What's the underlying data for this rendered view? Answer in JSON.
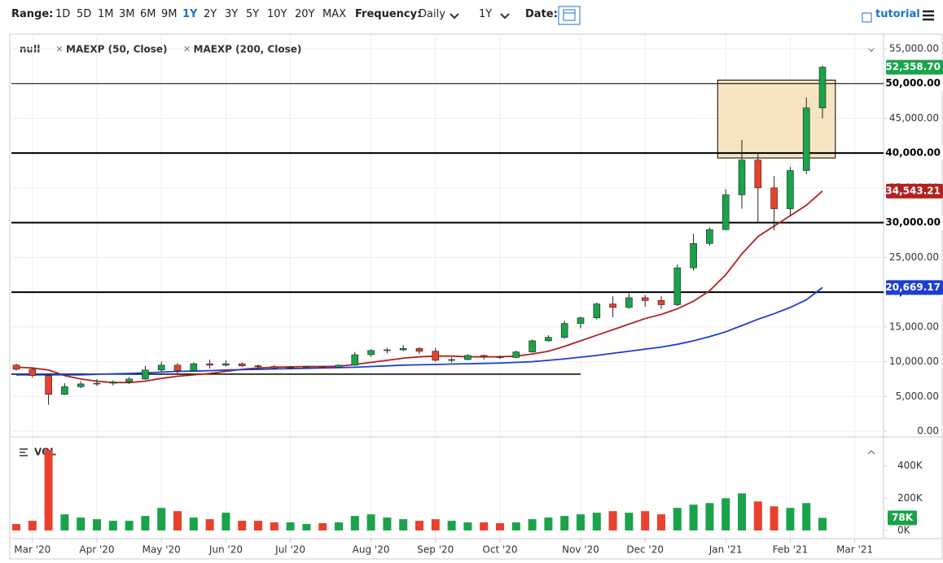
{
  "toolbar": {
    "range_label": "Range:",
    "ranges": [
      "1D",
      "5D",
      "1M",
      "3M",
      "6M",
      "9M",
      "1Y",
      "2Y",
      "3Y",
      "5Y",
      "10Y",
      "20Y",
      "MAX"
    ],
    "selected_range": 6,
    "frequency_label": "Frequency:",
    "frequency": "Daily",
    "interval": "1Y",
    "date_label": "Date:",
    "tutorial": "tutorial"
  },
  "chart_data": {
    "type": "candlestick",
    "legend_title": "null",
    "categories": [
      null,
      "Mar '20",
      null,
      null,
      null,
      "Apr '20",
      null,
      null,
      null,
      "May '20",
      null,
      null,
      null,
      "Jun '20",
      null,
      null,
      null,
      "Jul '20",
      null,
      null,
      null,
      null,
      "Aug '20",
      null,
      null,
      null,
      "Sep '20",
      null,
      null,
      null,
      "Oct '20",
      null,
      null,
      null,
      null,
      "Nov '20",
      null,
      null,
      null,
      "Dec '20",
      null,
      null,
      null,
      null,
      "Jan '21",
      null,
      null,
      null,
      "Feb '21",
      null,
      null,
      null,
      "Mar '21",
      null,
      null,
      null
    ],
    "open": [
      9500,
      8900,
      8000,
      5300,
      6400,
      6800,
      6900,
      7100,
      7500,
      8800,
      9500,
      8700,
      9700,
      9500,
      9700,
      9400,
      9300,
      9100,
      9200,
      9250,
      9200,
      9500,
      11000,
      11600,
      11700,
      11900,
      11500,
      10200,
      10300,
      10900,
      10700,
      10600,
      11400,
      13000,
      13500,
      15500,
      16300,
      18300,
      17800,
      19200,
      18800,
      18200,
      23500,
      27000,
      29000,
      34000,
      39000,
      35000,
      32000,
      37500,
      46500,
      null,
      null,
      null,
      null,
      null
    ],
    "high": [
      9700,
      9150,
      8000,
      6900,
      7200,
      7500,
      7300,
      7800,
      9400,
      10000,
      9800,
      9900,
      10300,
      10200,
      9900,
      9600,
      9500,
      9400,
      9300,
      9300,
      9600,
      11400,
      11800,
      12000,
      12400,
      12100,
      12000,
      10600,
      11100,
      11000,
      10900,
      11600,
      13200,
      13800,
      15900,
      16500,
      18500,
      19400,
      19800,
      19600,
      19400,
      24000,
      28400,
      29300,
      34800,
      41900,
      40100,
      36700,
      38000,
      48000,
      52600,
      null,
      null,
      null,
      null,
      null
    ],
    "low": [
      8700,
      7700,
      3800,
      5200,
      6200,
      6500,
      6600,
      6800,
      7400,
      8600,
      8200,
      8600,
      9000,
      9300,
      9200,
      8900,
      8900,
      8900,
      9050,
      9100,
      9100,
      9400,
      10700,
      11200,
      11500,
      11100,
      10000,
      9900,
      10200,
      10300,
      10400,
      10500,
      11300,
      12900,
      13300,
      14800,
      16100,
      16400,
      17600,
      17900,
      17600,
      18000,
      23100,
      26700,
      28900,
      32000,
      30000,
      28900,
      31000,
      37000,
      45000,
      null,
      null,
      null,
      null,
      null
    ],
    "close": [
      8900,
      8000,
      5300,
      6400,
      6800,
      6900,
      7100,
      7500,
      8800,
      9500,
      8700,
      9700,
      9500,
      9700,
      9400,
      9300,
      9100,
      9200,
      9250,
      9200,
      9500,
      11000,
      11600,
      11700,
      11900,
      11500,
      10200,
      10300,
      10900,
      10700,
      10600,
      11400,
      13000,
      13500,
      15500,
      16300,
      18300,
      17800,
      19200,
      18800,
      18200,
      23500,
      27000,
      29000,
      34000,
      39000,
      35000,
      32000,
      37500,
      46500,
      52358.7,
      null,
      null,
      null,
      null,
      null
    ],
    "up_color": "#1aa34a",
    "down_color": "#e8412c",
    "last_label": "52,358.70",
    "series": [
      {
        "name": "MAEXP (50, Close)",
        "color": "#b22222",
        "value_label": "34,543.21",
        "values": [
          9200,
          9100,
          8800,
          8000,
          7500,
          7200,
          7000,
          7000,
          7200,
          7600,
          7900,
          8100,
          8300,
          8600,
          8900,
          9100,
          9200,
          9250,
          9300,
          9300,
          9350,
          9600,
          9900,
          10200,
          10500,
          10700,
          10800,
          10800,
          10700,
          10700,
          10700,
          10800,
          11100,
          11500,
          12200,
          13000,
          13800,
          14600,
          15400,
          16200,
          16800,
          17600,
          18700,
          20200,
          22500,
          25500,
          28000,
          29500,
          31000,
          32500,
          34543.21,
          null,
          null,
          null,
          null,
          null
        ]
      },
      {
        "name": "MAEXP (200, Close)",
        "color": "#1f3fd1",
        "value_label": "20,669.17",
        "values": [
          8100,
          8100,
          8100,
          8100,
          8100,
          8200,
          8250,
          8300,
          8400,
          8500,
          8600,
          8650,
          8700,
          8800,
          8850,
          8900,
          8950,
          9000,
          9050,
          9100,
          9150,
          9200,
          9300,
          9400,
          9500,
          9550,
          9600,
          9650,
          9700,
          9750,
          9800,
          9900,
          10000,
          10200,
          10400,
          10650,
          10900,
          11200,
          11500,
          11800,
          12100,
          12500,
          13000,
          13600,
          14300,
          15200,
          16100,
          16900,
          17800,
          18900,
          20669.17,
          null,
          null,
          null,
          null,
          null
        ]
      }
    ],
    "ylim": [
      0,
      55000
    ],
    "yticks": [
      {
        "value": 0,
        "label": "0.00"
      },
      {
        "value": 5000,
        "label": "5,000.00"
      },
      {
        "value": 10000,
        "label": "10,000.00"
      },
      {
        "value": 15000,
        "label": "15,000.00"
      },
      {
        "value": 20000,
        "label": "20,000.00"
      },
      {
        "value": 25000,
        "label": "25,000.00"
      },
      {
        "value": 30000,
        "label": "30,000.00"
      },
      {
        "value": 35000,
        "label": "35,000.00"
      },
      {
        "value": 40000,
        "label": "40,000.00"
      },
      {
        "value": 45000,
        "label": "45,000.00"
      },
      {
        "value": 50000,
        "label": "50,000.00"
      },
      {
        "value": 55000,
        "label": "55,000.00"
      }
    ],
    "grid": true,
    "hlines": [
      {
        "value": 50000,
        "label": "50,000.00",
        "width": 1
      },
      {
        "value": 40000,
        "label": "40,000.00",
        "width": 2
      },
      {
        "value": 30000,
        "label": "30,000.00",
        "width": 2
      },
      {
        "value": 20000,
        "label": "20,000.00",
        "width": 2
      }
    ],
    "support_line": {
      "value": 8200,
      "from": 0,
      "to": 35
    },
    "box": {
      "ylim": [
        39300,
        50500
      ],
      "from": 43.5,
      "to": 50.8,
      "color": "#f5deb3"
    },
    "volume": {
      "title": "VOL",
      "last_label": "78K",
      "ylim": [
        0,
        540000
      ],
      "yticks": [
        {
          "value": 0,
          "label": "0K"
        },
        {
          "value": 200000,
          "label": "200K"
        },
        {
          "value": 400000,
          "label": "400K"
        }
      ],
      "values": [
        40000,
        60000,
        500000,
        100000,
        80000,
        70000,
        60000,
        60000,
        90000,
        140000,
        120000,
        80000,
        70000,
        110000,
        60000,
        60000,
        50000,
        50000,
        40000,
        45000,
        50000,
        90000,
        100000,
        80000,
        70000,
        60000,
        70000,
        60000,
        50000,
        50000,
        45000,
        50000,
        70000,
        80000,
        90000,
        100000,
        110000,
        120000,
        110000,
        120000,
        100000,
        140000,
        160000,
        170000,
        200000,
        230000,
        180000,
        150000,
        140000,
        170000,
        78000,
        null,
        null,
        null,
        null,
        null
      ]
    }
  }
}
